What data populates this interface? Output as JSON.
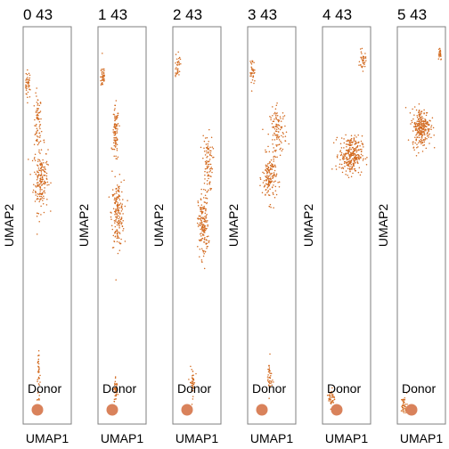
{
  "colors": {
    "point": "#d2691e",
    "legend_dot": "#d9825b",
    "frame": "#7f7f7f",
    "text": "#000000"
  },
  "panels": [
    {
      "title": "0 43",
      "xlabel": "UMAP1",
      "ylabel": "UMAP2",
      "legend_label": "Donor"
    },
    {
      "title": "1 43",
      "xlabel": "UMAP1",
      "ylabel": "UMAP2",
      "legend_label": "Donor"
    },
    {
      "title": "2 43",
      "xlabel": "UMAP1",
      "ylabel": "UMAP2",
      "legend_label": "Donor"
    },
    {
      "title": "3 43",
      "xlabel": "UMAP1",
      "ylabel": "UMAP2",
      "legend_label": "Donor"
    },
    {
      "title": "4 43",
      "xlabel": "UMAP1",
      "ylabel": "UMAP2",
      "legend_label": "Donor"
    },
    {
      "title": "5 43",
      "xlabel": "UMAP1",
      "ylabel": "UMAP2",
      "legend_label": "Donor"
    }
  ],
  "chart_data": [
    {
      "type": "scatter",
      "title": "0 43",
      "xlabel": "UMAP1",
      "ylabel": "UMAP2",
      "xlim": [
        0,
        1
      ],
      "ylim": [
        0,
        1
      ],
      "legend": {
        "entries": [
          "Donor"
        ],
        "placement": "bottom-left"
      },
      "clusters": [
        {
          "cx": 0.05,
          "cy": 0.86,
          "sx": 0.06,
          "sy": 0.03,
          "n": 40
        },
        {
          "cx": 0.28,
          "cy": 0.76,
          "sx": 0.07,
          "sy": 0.06,
          "n": 70
        },
        {
          "cx": 0.35,
          "cy": 0.62,
          "sx": 0.14,
          "sy": 0.07,
          "n": 180
        },
        {
          "cx": 0.3,
          "cy": 0.11,
          "sx": 0.03,
          "sy": 0.05,
          "n": 40
        }
      ]
    },
    {
      "type": "scatter",
      "title": "1 43",
      "xlabel": "UMAP1",
      "ylabel": "UMAP2",
      "xlim": [
        0,
        1
      ],
      "ylim": [
        0,
        1
      ],
      "legend": {
        "entries": [
          "Donor"
        ],
        "placement": "bottom-left"
      },
      "clusters": [
        {
          "cx": 0.05,
          "cy": 0.88,
          "sx": 0.05,
          "sy": 0.03,
          "n": 40
        },
        {
          "cx": 0.35,
          "cy": 0.73,
          "sx": 0.06,
          "sy": 0.06,
          "n": 90
        },
        {
          "cx": 0.4,
          "cy": 0.53,
          "sx": 0.12,
          "sy": 0.07,
          "n": 180
        },
        {
          "cx": 0.35,
          "cy": 0.08,
          "sx": 0.04,
          "sy": 0.03,
          "n": 40
        }
      ]
    },
    {
      "type": "scatter",
      "title": "2 43",
      "xlabel": "UMAP1",
      "ylabel": "UMAP2",
      "xlim": [
        0,
        1
      ],
      "ylim": [
        0,
        1
      ],
      "legend": {
        "entries": [
          "Donor"
        ],
        "placement": "bottom-left"
      },
      "clusters": [
        {
          "cx": 0.05,
          "cy": 0.91,
          "sx": 0.05,
          "sy": 0.03,
          "n": 35
        },
        {
          "cx": 0.75,
          "cy": 0.66,
          "sx": 0.1,
          "sy": 0.06,
          "n": 90
        },
        {
          "cx": 0.65,
          "cy": 0.5,
          "sx": 0.1,
          "sy": 0.07,
          "n": 170
        },
        {
          "cx": 0.4,
          "cy": 0.1,
          "sx": 0.05,
          "sy": 0.03,
          "n": 40
        }
      ]
    },
    {
      "type": "scatter",
      "title": "3 43",
      "xlabel": "UMAP1",
      "ylabel": "UMAP2",
      "xlim": [
        0,
        1
      ],
      "ylim": [
        0,
        1
      ],
      "legend": {
        "entries": [
          "Donor"
        ],
        "placement": "bottom-left"
      },
      "clusters": [
        {
          "cx": 0.05,
          "cy": 0.89,
          "sx": 0.05,
          "sy": 0.03,
          "n": 35
        },
        {
          "cx": 0.65,
          "cy": 0.74,
          "sx": 0.16,
          "sy": 0.05,
          "n": 110
        },
        {
          "cx": 0.45,
          "cy": 0.62,
          "sx": 0.14,
          "sy": 0.05,
          "n": 150
        },
        {
          "cx": 0.45,
          "cy": 0.11,
          "sx": 0.05,
          "sy": 0.04,
          "n": 40
        }
      ]
    },
    {
      "type": "scatter",
      "title": "4 43",
      "xlabel": "UMAP1",
      "ylabel": "UMAP2",
      "xlim": [
        0,
        1
      ],
      "ylim": [
        0,
        1
      ],
      "legend": {
        "entries": [
          "Donor"
        ],
        "placement": "bottom-left"
      },
      "clusters": [
        {
          "cx": 0.88,
          "cy": 0.92,
          "sx": 0.06,
          "sy": 0.02,
          "n": 35
        },
        {
          "cx": 0.6,
          "cy": 0.68,
          "sx": 0.22,
          "sy": 0.04,
          "n": 280
        },
        {
          "cx": 0.15,
          "cy": 0.06,
          "sx": 0.06,
          "sy": 0.02,
          "n": 40
        }
      ]
    },
    {
      "type": "scatter",
      "title": "5 43",
      "xlabel": "UMAP1",
      "ylabel": "UMAP2",
      "xlim": [
        0,
        1
      ],
      "ylim": [
        0,
        1
      ],
      "legend": {
        "entries": [
          "Donor"
        ],
        "placement": "bottom-left"
      },
      "clusters": [
        {
          "cx": 0.93,
          "cy": 0.94,
          "sx": 0.04,
          "sy": 0.015,
          "n": 25
        },
        {
          "cx": 0.5,
          "cy": 0.75,
          "sx": 0.18,
          "sy": 0.04,
          "n": 260
        },
        {
          "cx": 0.1,
          "cy": 0.04,
          "sx": 0.06,
          "sy": 0.02,
          "n": 40
        }
      ]
    }
  ]
}
